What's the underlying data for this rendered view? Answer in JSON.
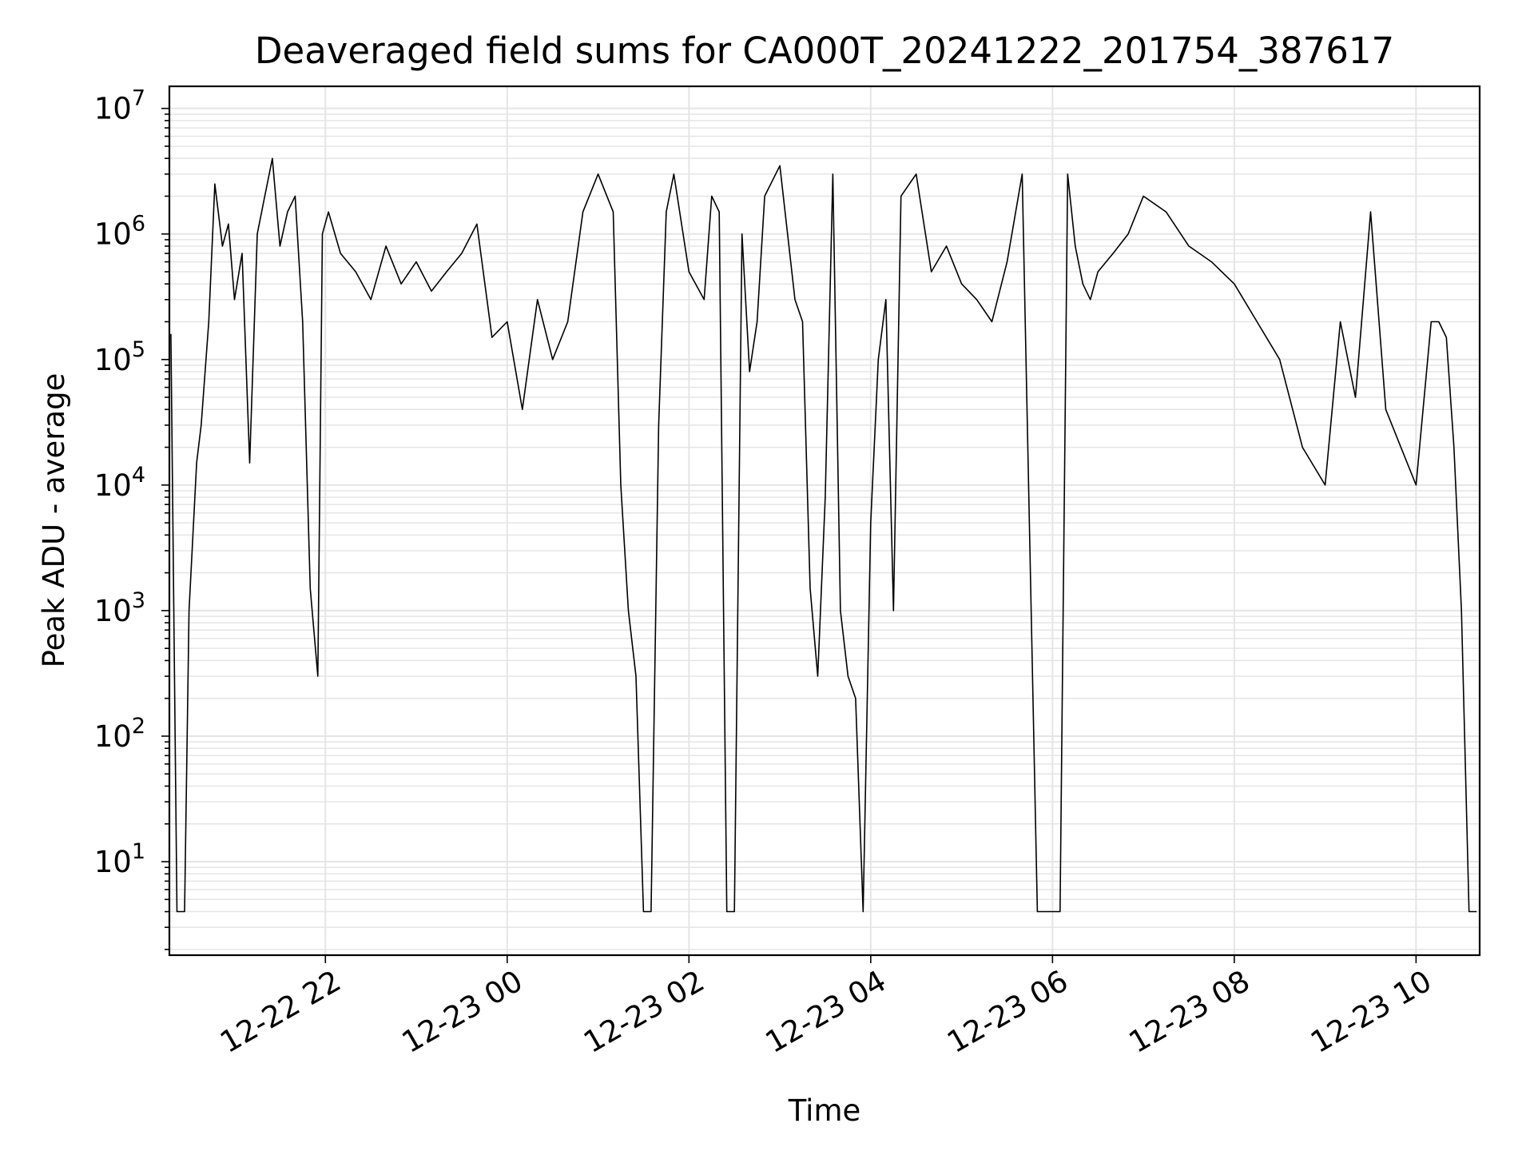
{
  "chart_data": {
    "type": "line",
    "title": "Deaveraged field sums for CA000T_20241222_201754_387617",
    "xlabel": "Time",
    "ylabel": "Peak ADU - average",
    "yscale": "log",
    "ylim": [
      1.8,
      15000000
    ],
    "xlim": [
      "2024-12-22 20:17",
      "2024-12-23 10:42"
    ],
    "grid": true,
    "line_color": "#000000",
    "grid_color": "#e5e5e5",
    "x_ticks": [
      {
        "value": "2024-12-22 22:00",
        "label": "12-22 22"
      },
      {
        "value": "2024-12-23 00:00",
        "label": "12-23 00"
      },
      {
        "value": "2024-12-23 02:00",
        "label": "12-23 02"
      },
      {
        "value": "2024-12-23 04:00",
        "label": "12-23 04"
      },
      {
        "value": "2024-12-23 06:00",
        "label": "12-23 06"
      },
      {
        "value": "2024-12-23 08:00",
        "label": "12-23 08"
      },
      {
        "value": "2024-12-23 10:00",
        "label": "12-23 10"
      }
    ],
    "y_ticks": [
      {
        "value": 10,
        "base": "10",
        "exp": "1"
      },
      {
        "value": 100,
        "base": "10",
        "exp": "2"
      },
      {
        "value": 1000,
        "base": "10",
        "exp": "3"
      },
      {
        "value": 10000,
        "base": "10",
        "exp": "4"
      },
      {
        "value": 100000,
        "base": "10",
        "exp": "5"
      },
      {
        "value": 1000000,
        "base": "10",
        "exp": "6"
      },
      {
        "value": 10000000,
        "base": "10",
        "exp": "7"
      }
    ],
    "series": [
      {
        "x": [
          "2024-12-22 20:18",
          "2024-12-22 20:22",
          "2024-12-22 20:27",
          "2024-12-22 20:30",
          "2024-12-22 20:35",
          "2024-12-22 20:38",
          "2024-12-22 20:43",
          "2024-12-22 20:47",
          "2024-12-22 20:52",
          "2024-12-22 20:56",
          "2024-12-22 21:00",
          "2024-12-22 21:05",
          "2024-12-22 21:10",
          "2024-12-22 21:15",
          "2024-12-22 21:20",
          "2024-12-22 21:25",
          "2024-12-22 21:30",
          "2024-12-22 21:35",
          "2024-12-22 21:40",
          "2024-12-22 21:45",
          "2024-12-22 21:50",
          "2024-12-22 21:55",
          "2024-12-22 21:58",
          "2024-12-22 22:02",
          "2024-12-22 22:10",
          "2024-12-22 22:20",
          "2024-12-22 22:30",
          "2024-12-22 22:40",
          "2024-12-22 22:50",
          "2024-12-22 23:00",
          "2024-12-22 23:10",
          "2024-12-22 23:20",
          "2024-12-22 23:30",
          "2024-12-22 23:40",
          "2024-12-22 23:50",
          "2024-12-23 00:00",
          "2024-12-23 00:10",
          "2024-12-23 00:20",
          "2024-12-23 00:30",
          "2024-12-23 00:40",
          "2024-12-23 00:50",
          "2024-12-23 01:00",
          "2024-12-23 01:10",
          "2024-12-23 01:15",
          "2024-12-23 01:20",
          "2024-12-23 01:25",
          "2024-12-23 01:30",
          "2024-12-23 01:35",
          "2024-12-23 01:40",
          "2024-12-23 01:45",
          "2024-12-23 01:50",
          "2024-12-23 02:00",
          "2024-12-23 02:10",
          "2024-12-23 02:15",
          "2024-12-23 02:20",
          "2024-12-23 02:25",
          "2024-12-23 02:30",
          "2024-12-23 02:35",
          "2024-12-23 02:40",
          "2024-12-23 02:45",
          "2024-12-23 02:50",
          "2024-12-23 03:00",
          "2024-12-23 03:10",
          "2024-12-23 03:15",
          "2024-12-23 03:20",
          "2024-12-23 03:25",
          "2024-12-23 03:30",
          "2024-12-23 03:35",
          "2024-12-23 03:40",
          "2024-12-23 03:45",
          "2024-12-23 03:50",
          "2024-12-23 03:55",
          "2024-12-23 04:00",
          "2024-12-23 04:05",
          "2024-12-23 04:10",
          "2024-12-23 04:15",
          "2024-12-23 04:20",
          "2024-12-23 04:30",
          "2024-12-23 04:40",
          "2024-12-23 04:50",
          "2024-12-23 05:00",
          "2024-12-23 05:10",
          "2024-12-23 05:20",
          "2024-12-23 05:30",
          "2024-12-23 05:40",
          "2024-12-23 05:50",
          "2024-12-23 06:00",
          "2024-12-23 06:05",
          "2024-12-23 06:10",
          "2024-12-23 06:15",
          "2024-12-23 06:20",
          "2024-12-23 06:25",
          "2024-12-23 06:30",
          "2024-12-23 06:40",
          "2024-12-23 06:50",
          "2024-12-23 07:00",
          "2024-12-23 07:15",
          "2024-12-23 07:30",
          "2024-12-23 07:45",
          "2024-12-23 08:00",
          "2024-12-23 08:15",
          "2024-12-23 08:30",
          "2024-12-23 08:45",
          "2024-12-23 09:00",
          "2024-12-23 09:10",
          "2024-12-23 09:20",
          "2024-12-23 09:30",
          "2024-12-23 09:40",
          "2024-12-23 09:50",
          "2024-12-23 10:00",
          "2024-12-23 10:10",
          "2024-12-23 10:15",
          "2024-12-23 10:20",
          "2024-12-23 10:25",
          "2024-12-23 10:30",
          "2024-12-23 10:35",
          "2024-12-23 10:40"
        ],
        "y": [
          160000,
          4,
          4,
          1000,
          15000,
          30000,
          200000,
          2500000,
          800000,
          1200000,
          300000,
          700000,
          15000,
          1000000,
          2000000,
          4000000,
          800000,
          1500000,
          2000000,
          200000,
          1500,
          300,
          1000000,
          1500000,
          700000,
          500000,
          300000,
          800000,
          400000,
          600000,
          350000,
          500000,
          700000,
          1200000,
          150000,
          200000,
          40000,
          300000,
          100000,
          200000,
          1500000,
          3000000,
          1500000,
          10000,
          1000,
          300,
          4,
          4,
          30000,
          1500000,
          3000000,
          500000,
          300000,
          2000000,
          1500000,
          4,
          4,
          1000000,
          80000,
          200000,
          2000000,
          3500000,
          300000,
          200000,
          1500,
          300,
          8000,
          3000000,
          1000,
          300,
          200,
          4,
          5000,
          100000,
          300000,
          1000,
          2000000,
          3000000,
          500000,
          800000,
          400000,
          300000,
          200000,
          600000,
          3000000,
          4,
          4,
          4,
          3000000,
          800000,
          400000,
          300000,
          500000,
          700000,
          1000000,
          2000000,
          1500000,
          800000,
          600000,
          400000,
          200000,
          100000,
          20000,
          10000,
          200000,
          50000,
          1500000,
          40000,
          20000,
          10000,
          200000,
          200000,
          150000,
          20000,
          1000,
          4,
          4
        ]
      }
    ]
  }
}
